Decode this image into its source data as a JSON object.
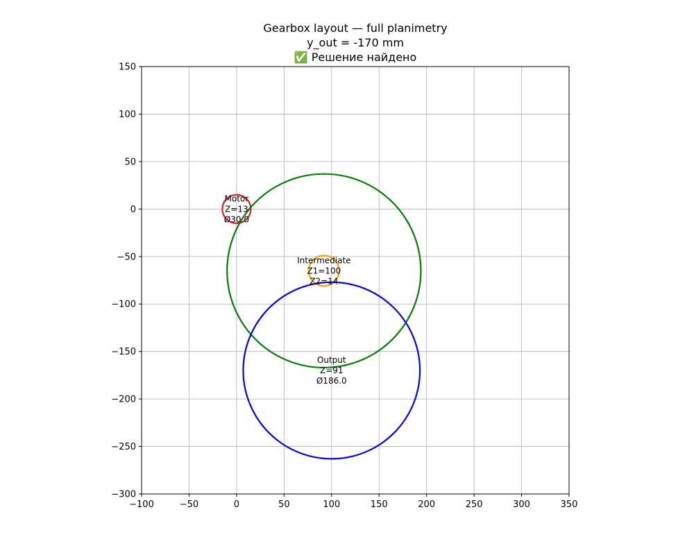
{
  "chart_data": {
    "type": "scatter",
    "title_lines": [
      "Gearbox layout — full planimetry",
      "y_out = -170 mm",
      "✅ Решение найдено"
    ],
    "xlabel": "",
    "ylabel": "",
    "xlim": [
      -100,
      350
    ],
    "ylim": [
      -300,
      150
    ],
    "xticks": [
      -100,
      -50,
      0,
      50,
      100,
      150,
      200,
      250,
      300,
      350
    ],
    "yticks": [
      -300,
      -250,
      -200,
      -150,
      -100,
      -50,
      0,
      50,
      100,
      150
    ],
    "xtick_labels": [
      "−100",
      "−50",
      "0",
      "50",
      "100",
      "150",
      "200",
      "250",
      "300",
      "350"
    ],
    "ytick_labels": [
      "−300",
      "−250",
      "−200",
      "−150",
      "−100",
      "−50",
      "0",
      "50",
      "100",
      "150"
    ],
    "grid": true,
    "aspect": "equal",
    "circles": [
      {
        "cx": 0,
        "cy": 0,
        "r": 15,
        "color": "#e41a1c",
        "label_lines": [
          "Motor",
          "Z=13",
          "Ø30.0"
        ]
      },
      {
        "cx": 92,
        "cy": -65,
        "r": 102,
        "color": "#008000",
        "label_lines": []
      },
      {
        "cx": 92,
        "cy": -65,
        "r": 16,
        "color": "#ffa500",
        "label_lines": [
          "Intermediate",
          "Z1=100",
          "Z2=14"
        ]
      },
      {
        "cx": 100,
        "cy": -170,
        "r": 93,
        "color": "#0000ff",
        "label_lines": [
          "Output",
          "Z=91",
          "Ø186.0"
        ]
      }
    ]
  }
}
